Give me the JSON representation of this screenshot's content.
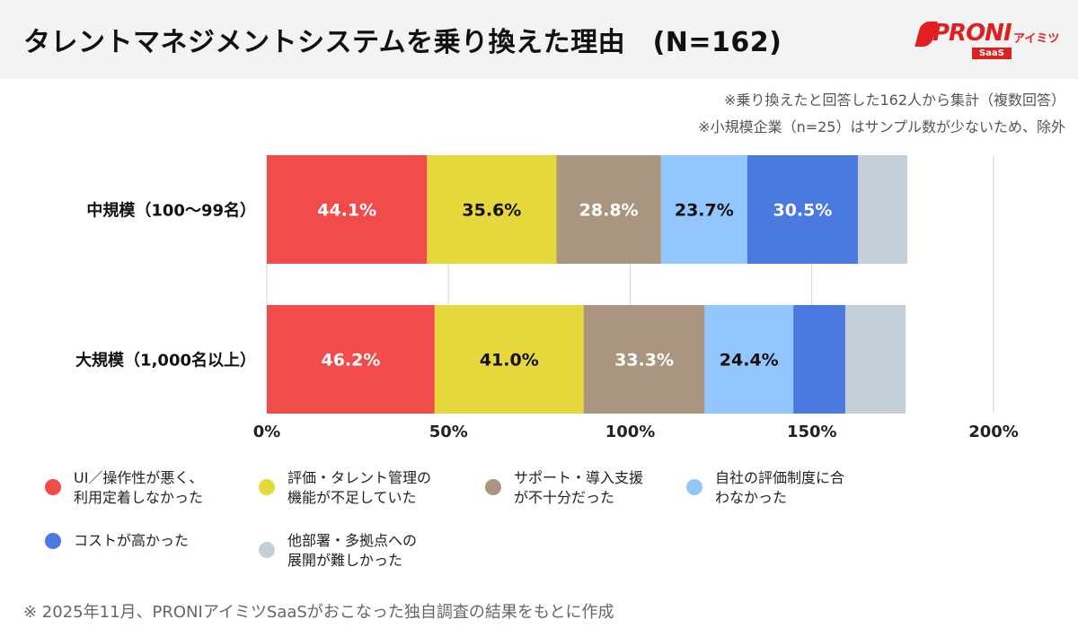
{
  "header": {
    "title": "タレントマネジメントシステムを乗り換えた理由　(N=162)",
    "logo_text": "PRONI",
    "logo_sub": "アイミツ",
    "logo_saas": "SaaS"
  },
  "notes": [
    "※乗り換えたと回答した162人から集計（複数回答）",
    "※小規模企業（n=25）はサンプル数が少ないため、除外"
  ],
  "footer": "※ 2025年11月、PRONIアイミツSaaSがおこなった独自調査の結果をもとに作成",
  "chart_data": {
    "type": "bar",
    "orientation": "horizontal",
    "stacked": true,
    "categories": [
      "中規模（100〜99名）",
      "大規模（1,000名以上）"
    ],
    "xlim": [
      0,
      200
    ],
    "xticks": [
      "0%",
      "50%",
      "100%",
      "150%",
      "200%"
    ],
    "grid": true,
    "legend_position": "bottom",
    "series": [
      {
        "name": "UI／操作性が悪く、\n利用定着しなかった",
        "color": "#f24b4b",
        "label_color": "#ffffff",
        "values": [
          44.1,
          46.2
        ],
        "labels": [
          "44.1%",
          "46.2%"
        ]
      },
      {
        "name": "評価・タレント管理の\n機能が不足していた",
        "color": "#e5d73c",
        "label_color": "#111111",
        "values": [
          35.6,
          41.0
        ],
        "labels": [
          "35.6%",
          "41.0%"
        ]
      },
      {
        "name": "サポート・導入支援\nが不十分だった",
        "color": "#a99580",
        "label_color": "#ffffff",
        "values": [
          28.8,
          33.3
        ],
        "labels": [
          "28.8%",
          "33.3%"
        ]
      },
      {
        "name": "自社の評価制度に合\nわなかった",
        "color": "#93c6fc",
        "label_color": "#111111",
        "values": [
          23.7,
          24.4
        ],
        "labels": [
          "23.7%",
          "24.4%"
        ]
      },
      {
        "name": "コストが高かった",
        "color": "#4a79e0",
        "label_color": "#ffffff",
        "values": [
          30.5,
          14.3
        ],
        "labels": [
          "30.5%",
          ""
        ]
      },
      {
        "name": "他部署・多拠点への\n展開が難しかった",
        "color": "#c5cfd9",
        "label_color": "#111111",
        "values": [
          13.6,
          16.6
        ],
        "labels": [
          "",
          ""
        ]
      }
    ]
  }
}
